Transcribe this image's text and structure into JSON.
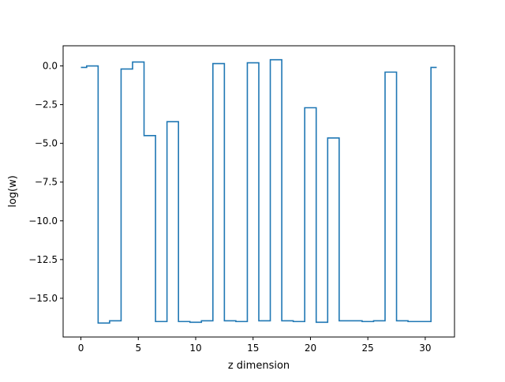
{
  "chart_data": {
    "type": "line",
    "drawstyle": "steps-mid",
    "title": "",
    "xlabel": "z dimension",
    "ylabel": "log(w)",
    "xlim": [
      -1.55,
      32.55
    ],
    "ylim": [
      -17.5,
      1.3
    ],
    "grid": false,
    "legend": "none",
    "x_ticks": [
      0,
      5,
      10,
      15,
      20,
      25,
      30
    ],
    "x_tick_labels": [
      "0",
      "5",
      "10",
      "15",
      "20",
      "25",
      "30"
    ],
    "y_ticks": [
      0.0,
      -2.5,
      -5.0,
      -7.5,
      -10.0,
      -12.5,
      -15.0
    ],
    "y_tick_labels": [
      "0.0",
      "−2.5",
      "−5.0",
      "−7.5",
      "−10.0",
      "−12.5",
      "−15.0"
    ],
    "series": [
      {
        "color": "#1f77b4",
        "x": [
          0,
          1,
          2,
          3,
          4,
          5,
          6,
          7,
          8,
          9,
          10,
          11,
          12,
          13,
          14,
          15,
          16,
          17,
          18,
          19,
          20,
          21,
          22,
          23,
          24,
          25,
          26,
          27,
          28,
          29,
          30,
          31
        ],
        "y": [
          -0.1,
          0.0,
          -16.6,
          -16.45,
          -0.2,
          0.25,
          -4.5,
          -16.5,
          -3.6,
          -16.5,
          -16.55,
          -16.45,
          0.15,
          -16.45,
          -16.5,
          0.2,
          -16.45,
          0.4,
          -16.45,
          -16.5,
          -2.7,
          -16.55,
          -4.65,
          -16.45,
          -16.45,
          -16.5,
          -16.45,
          -0.4,
          -16.45,
          -16.5,
          -16.5,
          -0.1
        ]
      }
    ]
  }
}
